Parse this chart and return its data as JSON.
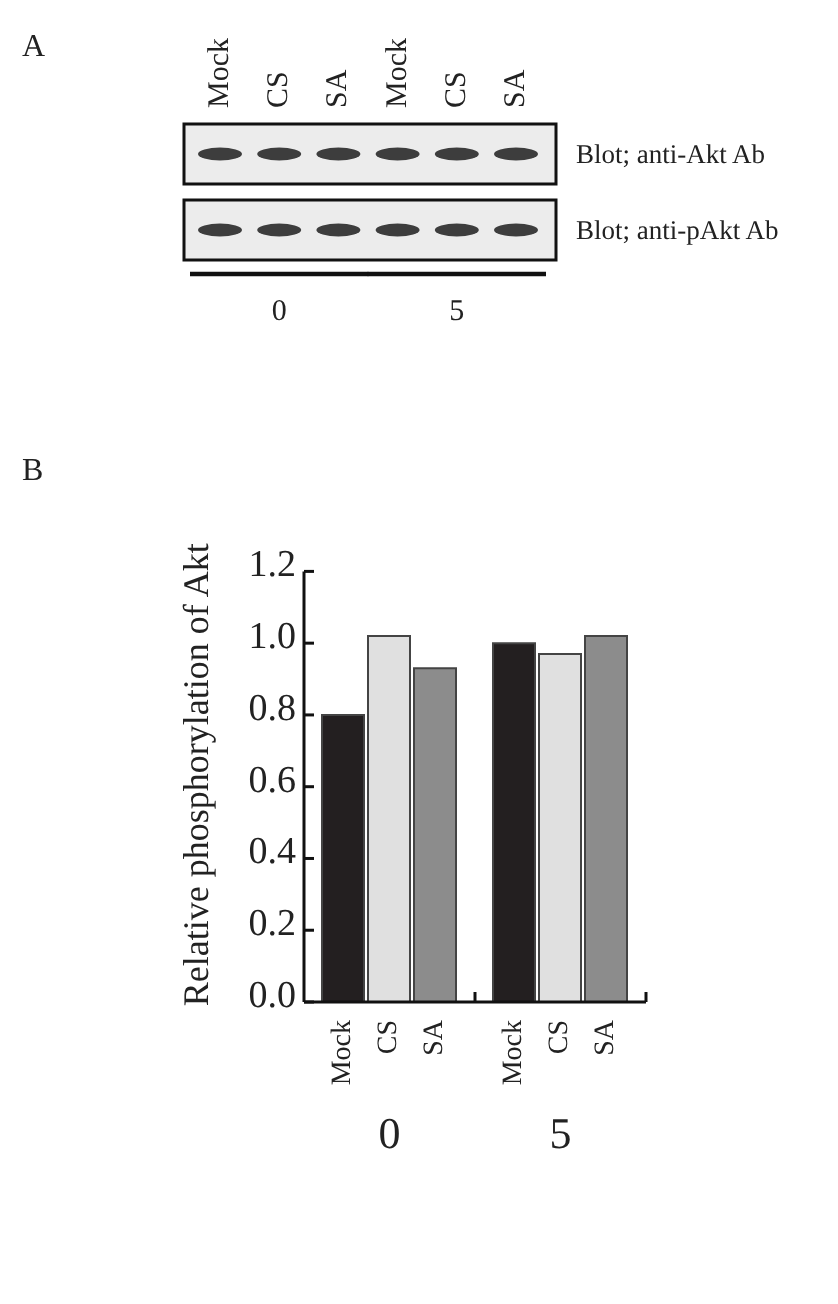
{
  "chart_data": [
    {
      "type": "other",
      "categories": [
        "Mock",
        "CS",
        "SA",
        "Mock",
        "CS",
        "SA"
      ],
      "annotations": [
        "A",
        "Blot; anti-Akt Ab",
        "Blot; anti-pAkt Ab",
        "0",
        "5"
      ]
    },
    {
      "type": "bar",
      "annotations": [
        "B"
      ],
      "ylabel": "Relative phosphorylation of Akt",
      "categories": [
        "0",
        "5"
      ],
      "series": [
        {
          "name": "Mock",
          "color": "#231f20",
          "values": [
            0.8,
            1.0
          ]
        },
        {
          "name": "CS",
          "color": "#e0e0e0",
          "values": [
            1.02,
            0.97
          ]
        },
        {
          "name": "SA",
          "color": "#8c8c8c",
          "values": [
            0.93,
            1.02
          ]
        }
      ],
      "ylim": [
        0,
        1.2
      ],
      "yticks": [
        {
          "value": 0,
          "label": "0.0"
        },
        0.2,
        0.4,
        0.6,
        0.8,
        {
          "value": 1,
          "label": "1.0"
        },
        1.2
      ]
    }
  ]
}
